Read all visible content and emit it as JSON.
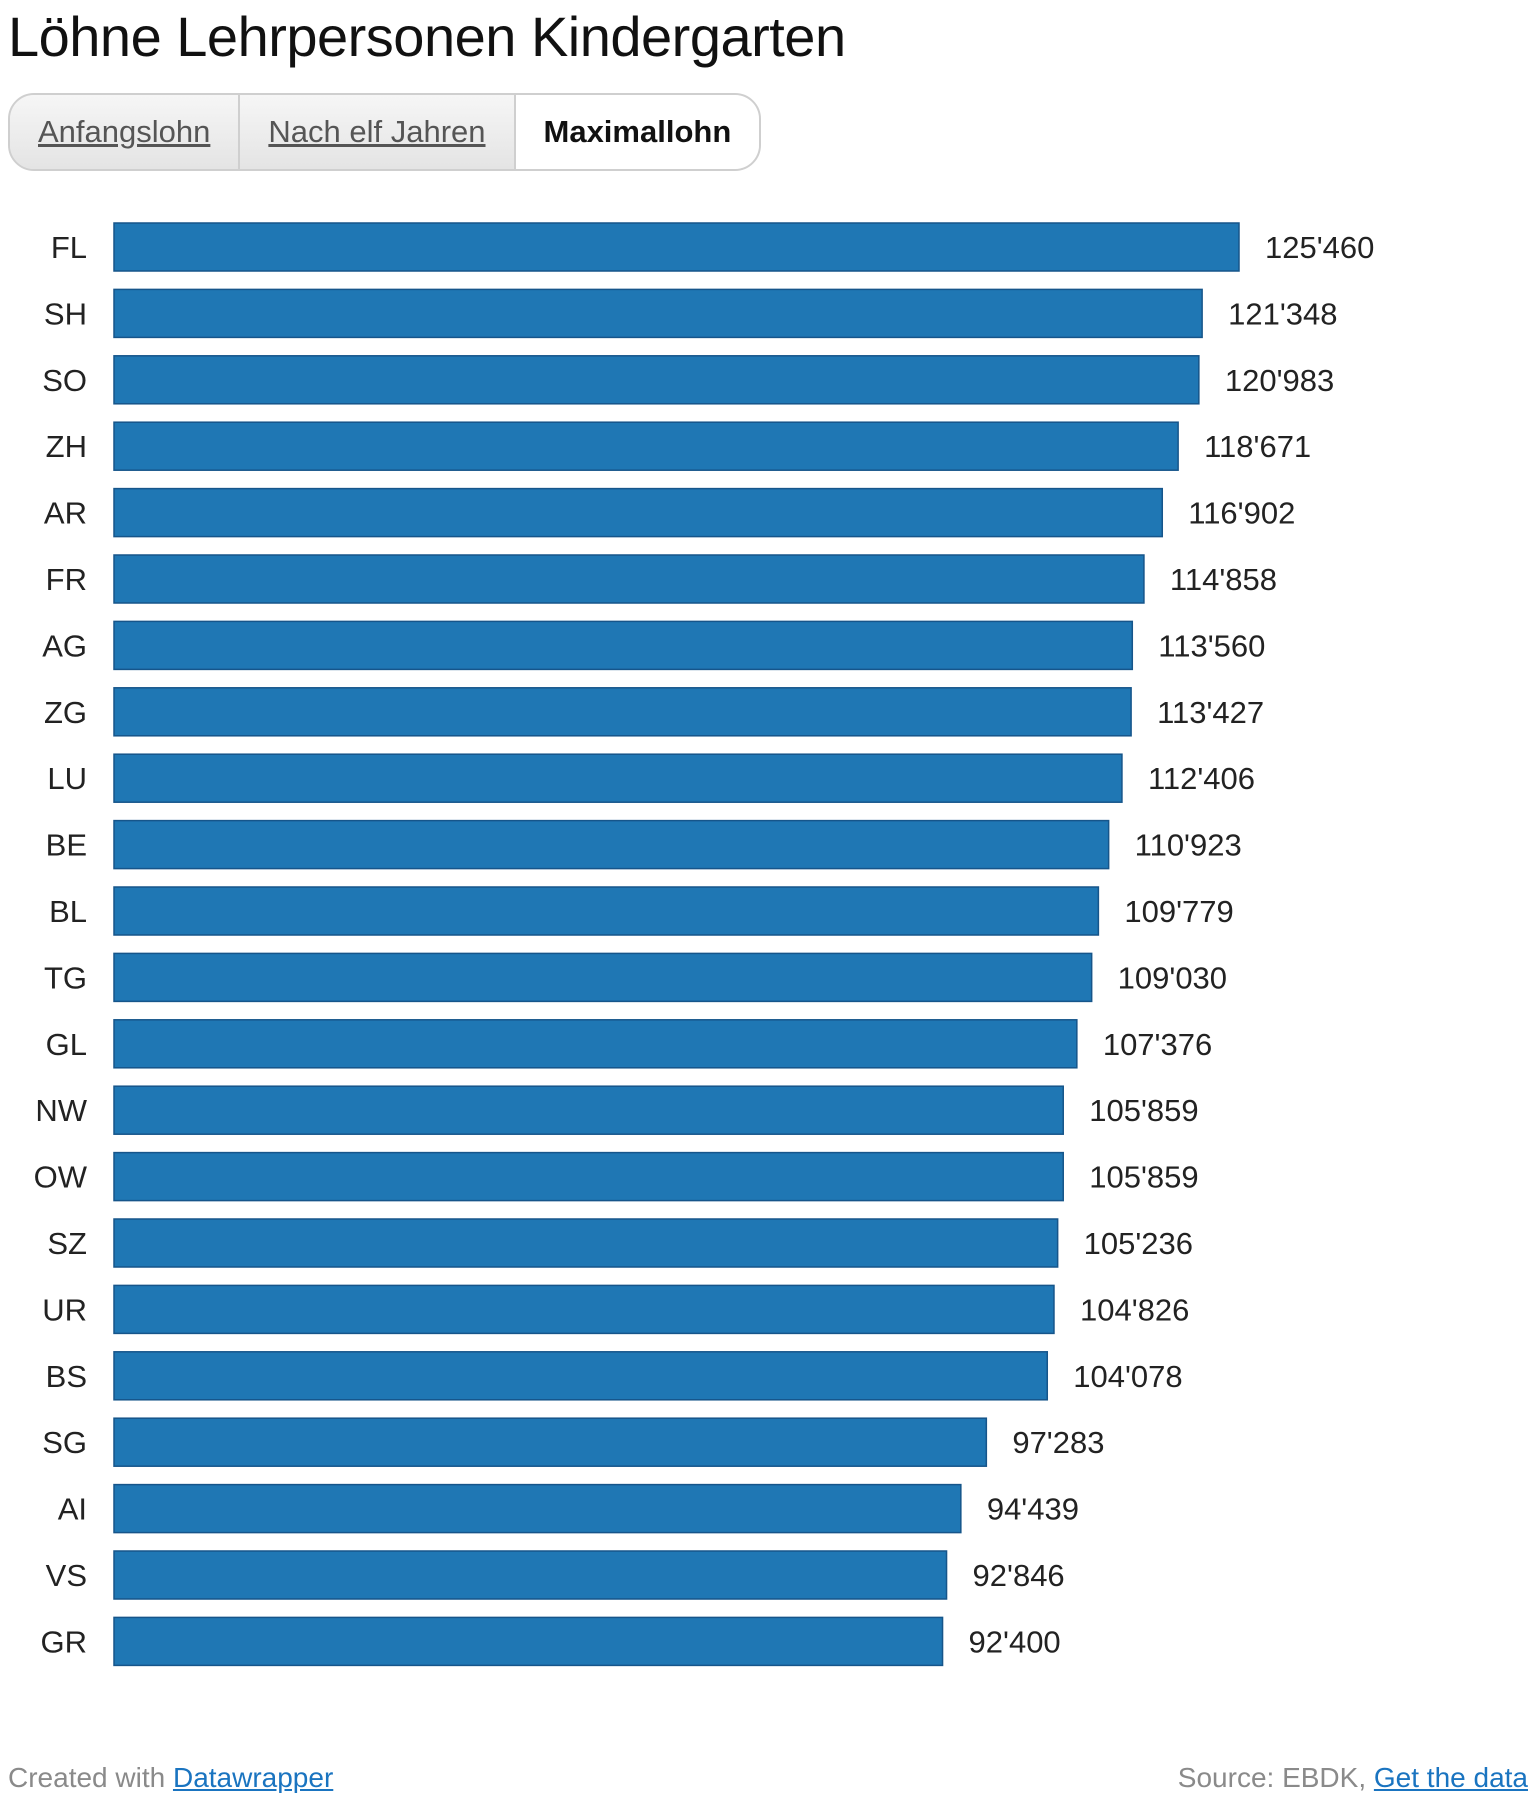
{
  "title": "Löhne Lehrpersonen Kindergarten",
  "tabs": [
    {
      "label": "Anfangslohn",
      "active": false
    },
    {
      "label": "Nach elf Jahren",
      "active": false
    },
    {
      "label": "Maximallohn",
      "active": true
    }
  ],
  "chart_data": {
    "type": "bar",
    "orientation": "horizontal",
    "title": "Löhne Lehrpersonen Kindergarten",
    "series_name": "Maximallohn",
    "categories": [
      "FL",
      "SH",
      "SO",
      "ZH",
      "AR",
      "FR",
      "AG",
      "ZG",
      "LU",
      "BE",
      "BL",
      "TG",
      "GL",
      "NW",
      "OW",
      "SZ",
      "UR",
      "BS",
      "SG",
      "AI",
      "VS",
      "GR"
    ],
    "values": [
      125460,
      121348,
      120983,
      118671,
      116902,
      114858,
      113560,
      113427,
      112406,
      110923,
      109779,
      109030,
      107376,
      105859,
      105859,
      105236,
      104826,
      104078,
      97283,
      94439,
      92846,
      92400
    ],
    "value_labels": [
      "125'460",
      "121'348",
      "120'983",
      "118'671",
      "116'902",
      "114'858",
      "113'560",
      "113'427",
      "112'406",
      "110'923",
      "109'779",
      "109'030",
      "107'376",
      "105'859",
      "105'859",
      "105'236",
      "104'826",
      "104'078",
      "97'283",
      "94'439",
      "92'846",
      "92'400"
    ],
    "xlim": [
      0,
      125460
    ],
    "bar_color": "#1f77b4",
    "xlabel": "",
    "ylabel": "",
    "grid": false
  },
  "footer": {
    "created_with": "Created with",
    "created_link": "Datawrapper",
    "source": "Source: EBDK,",
    "data_link": "Get the data"
  }
}
